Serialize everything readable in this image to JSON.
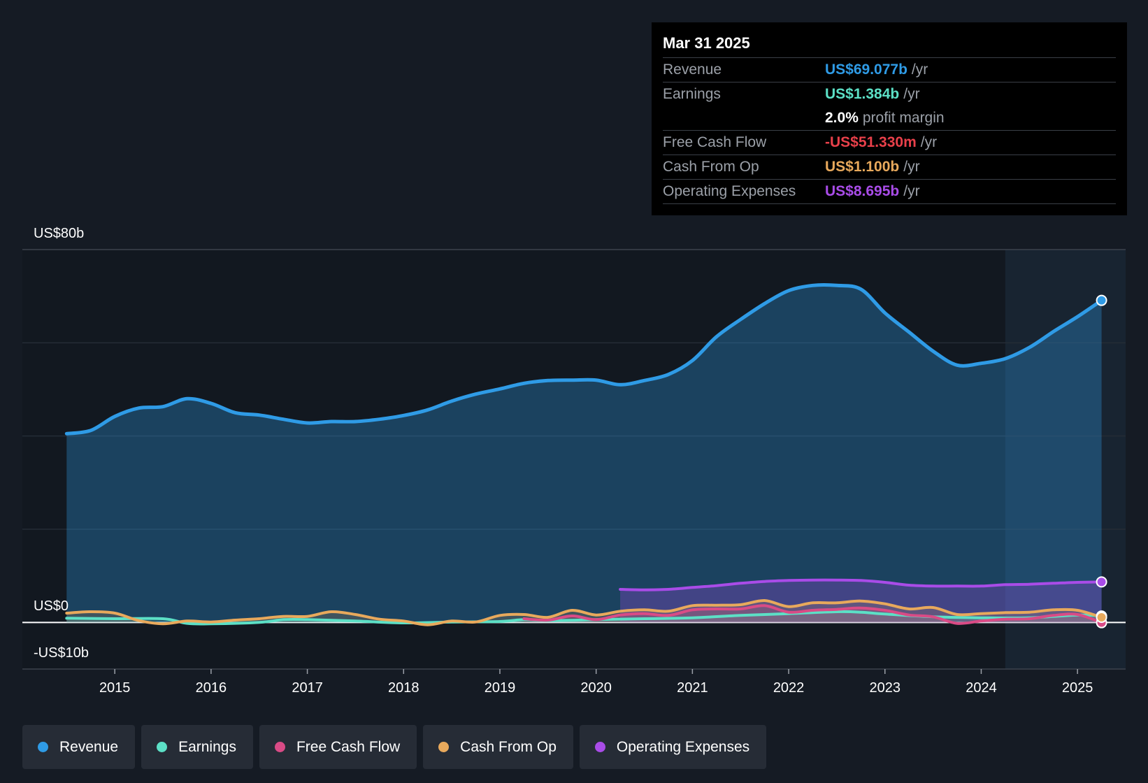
{
  "chart_data": {
    "type": "area",
    "y_axis_labels": {
      "top": "US$80b",
      "zero": "US$0",
      "bottom": "-US$10b"
    },
    "ylim": [
      -10,
      80
    ],
    "x_ticks": [
      "2015",
      "2016",
      "2017",
      "2018",
      "2019",
      "2020",
      "2021",
      "2022",
      "2023",
      "2024",
      "2025"
    ],
    "series": [
      {
        "name": "Revenue",
        "color": "#2f9be6",
        "x": [
          2014.5,
          2014.75,
          2015.0,
          2015.25,
          2015.5,
          2015.75,
          2016.0,
          2016.25,
          2016.5,
          2016.75,
          2017.0,
          2017.25,
          2017.5,
          2017.75,
          2018.0,
          2018.25,
          2018.5,
          2018.75,
          2019.0,
          2019.25,
          2019.5,
          2019.75,
          2020.0,
          2020.25,
          2020.5,
          2020.75,
          2021.0,
          2021.25,
          2021.5,
          2021.75,
          2022.0,
          2022.25,
          2022.5,
          2022.75,
          2023.0,
          2023.25,
          2023.5,
          2023.75,
          2024.0,
          2024.25,
          2024.5,
          2024.75,
          2025.0,
          2025.25
        ],
        "values": [
          40.5,
          41.2,
          44.2,
          46.0,
          46.3,
          48.0,
          47.0,
          45.0,
          44.5,
          43.6,
          42.8,
          43.1,
          43.1,
          43.6,
          44.4,
          45.6,
          47.5,
          49.0,
          50.1,
          51.3,
          51.9,
          52.0,
          52.0,
          51.0,
          51.9,
          53.2,
          56.2,
          61.3,
          65.0,
          68.4,
          71.2,
          72.3,
          72.3,
          71.5,
          66.4,
          62.3,
          58.2,
          55.2,
          55.6,
          56.6,
          59.0,
          62.4,
          65.6,
          69.1
        ]
      },
      {
        "name": "Earnings",
        "color": "#5ce0c6",
        "x": [
          2014.5,
          2015.0,
          2015.5,
          2015.75,
          2016.0,
          2016.5,
          2016.75,
          2017.0,
          2017.5,
          2018.0,
          2018.5,
          2019.0,
          2019.25,
          2019.5,
          2020.0,
          2020.5,
          2021.0,
          2021.5,
          2022.0,
          2022.5,
          2022.75,
          2023.0,
          2023.5,
          2024.0,
          2024.5,
          2025.0,
          2025.25
        ],
        "values": [
          0.9,
          0.8,
          0.8,
          -0.2,
          -0.3,
          0.0,
          0.6,
          0.6,
          0.3,
          -0.1,
          0.1,
          0.2,
          0.6,
          0.4,
          0.6,
          0.8,
          1.0,
          1.5,
          1.9,
          2.3,
          2.2,
          1.8,
          1.2,
          1.0,
          1.0,
          1.6,
          1.384
        ]
      },
      {
        "name": "Free Cash Flow",
        "color": "#d94b86",
        "x": [
          2019.25,
          2019.5,
          2019.75,
          2020.0,
          2020.25,
          2020.5,
          2020.75,
          2021.0,
          2021.25,
          2021.5,
          2021.75,
          2022.0,
          2022.25,
          2022.5,
          2022.75,
          2023.0,
          2023.25,
          2023.5,
          2023.75,
          2024.0,
          2024.25,
          2024.5,
          2024.75,
          2025.0,
          2025.25
        ],
        "values": [
          0.8,
          0.5,
          1.4,
          0.6,
          1.6,
          1.9,
          1.5,
          2.7,
          2.9,
          2.9,
          3.6,
          2.2,
          2.6,
          2.8,
          3.1,
          2.6,
          1.6,
          1.2,
          -0.2,
          0.3,
          0.7,
          0.8,
          1.5,
          1.7,
          -0.05
        ]
      },
      {
        "name": "Cash From Op",
        "color": "#e8a95c",
        "x": [
          2014.5,
          2014.75,
          2015.0,
          2015.25,
          2015.5,
          2015.75,
          2016.0,
          2016.25,
          2016.5,
          2016.75,
          2017.0,
          2017.25,
          2017.5,
          2017.75,
          2018.0,
          2018.25,
          2018.5,
          2018.75,
          2019.0,
          2019.25,
          2019.5,
          2019.75,
          2020.0,
          2020.25,
          2020.5,
          2020.75,
          2021.0,
          2021.25,
          2021.5,
          2021.75,
          2022.0,
          2022.25,
          2022.5,
          2022.75,
          2023.0,
          2023.25,
          2023.5,
          2023.75,
          2024.0,
          2024.25,
          2024.5,
          2024.75,
          2025.0,
          2025.25
        ],
        "values": [
          2.0,
          2.3,
          2.0,
          0.4,
          -0.3,
          0.3,
          0.1,
          0.5,
          0.8,
          1.3,
          1.3,
          2.3,
          1.7,
          0.7,
          0.3,
          -0.5,
          0.3,
          0.1,
          1.5,
          1.7,
          1.1,
          2.6,
          1.6,
          2.4,
          2.7,
          2.4,
          3.6,
          3.7,
          3.8,
          4.7,
          3.4,
          4.2,
          4.2,
          4.6,
          4.0,
          2.9,
          3.2,
          1.7,
          1.9,
          2.1,
          2.2,
          2.7,
          2.6,
          1.1
        ]
      },
      {
        "name": "Operating Expenses",
        "color": "#a94ce8",
        "x": [
          2020.25,
          2020.5,
          2020.75,
          2021.0,
          2021.25,
          2021.5,
          2021.75,
          2022.0,
          2022.25,
          2022.5,
          2022.75,
          2023.0,
          2023.25,
          2023.5,
          2023.75,
          2024.0,
          2024.25,
          2024.5,
          2024.75,
          2025.0,
          2025.25
        ],
        "values": [
          7.1,
          7.0,
          7.1,
          7.5,
          7.9,
          8.4,
          8.8,
          9.0,
          9.1,
          9.1,
          9.0,
          8.6,
          8.0,
          7.8,
          7.8,
          7.8,
          8.1,
          8.2,
          8.4,
          8.6,
          8.695
        ]
      }
    ],
    "forecast_region_start": "2024.25",
    "tooltip": {
      "date": "Mar 31 2025",
      "rows": [
        {
          "label": "Revenue",
          "value": "US$69.077b",
          "unit": "/yr",
          "color": "#2f9be6"
        },
        {
          "label": "Earnings",
          "value": "US$1.384b",
          "unit": "/yr",
          "color": "#5ce0c6"
        },
        {
          "label": "",
          "value": "2.0%",
          "unit": "profit margin",
          "color": "#ffffff"
        },
        {
          "label": "Free Cash Flow",
          "value": "-US$51.330m",
          "unit": "/yr",
          "color": "#e8404a"
        },
        {
          "label": "Cash From Op",
          "value": "US$1.100b",
          "unit": "/yr",
          "color": "#e8a95c"
        },
        {
          "label": "Operating Expenses",
          "value": "US$8.695b",
          "unit": "/yr",
          "color": "#a94ce8"
        }
      ]
    }
  },
  "legend": [
    {
      "label": "Revenue",
      "color": "#2f9be6"
    },
    {
      "label": "Earnings",
      "color": "#5ce0c6"
    },
    {
      "label": "Free Cash Flow",
      "color": "#d94b86"
    },
    {
      "label": "Cash From Op",
      "color": "#e8a95c"
    },
    {
      "label": "Operating Expenses",
      "color": "#a94ce8"
    }
  ]
}
